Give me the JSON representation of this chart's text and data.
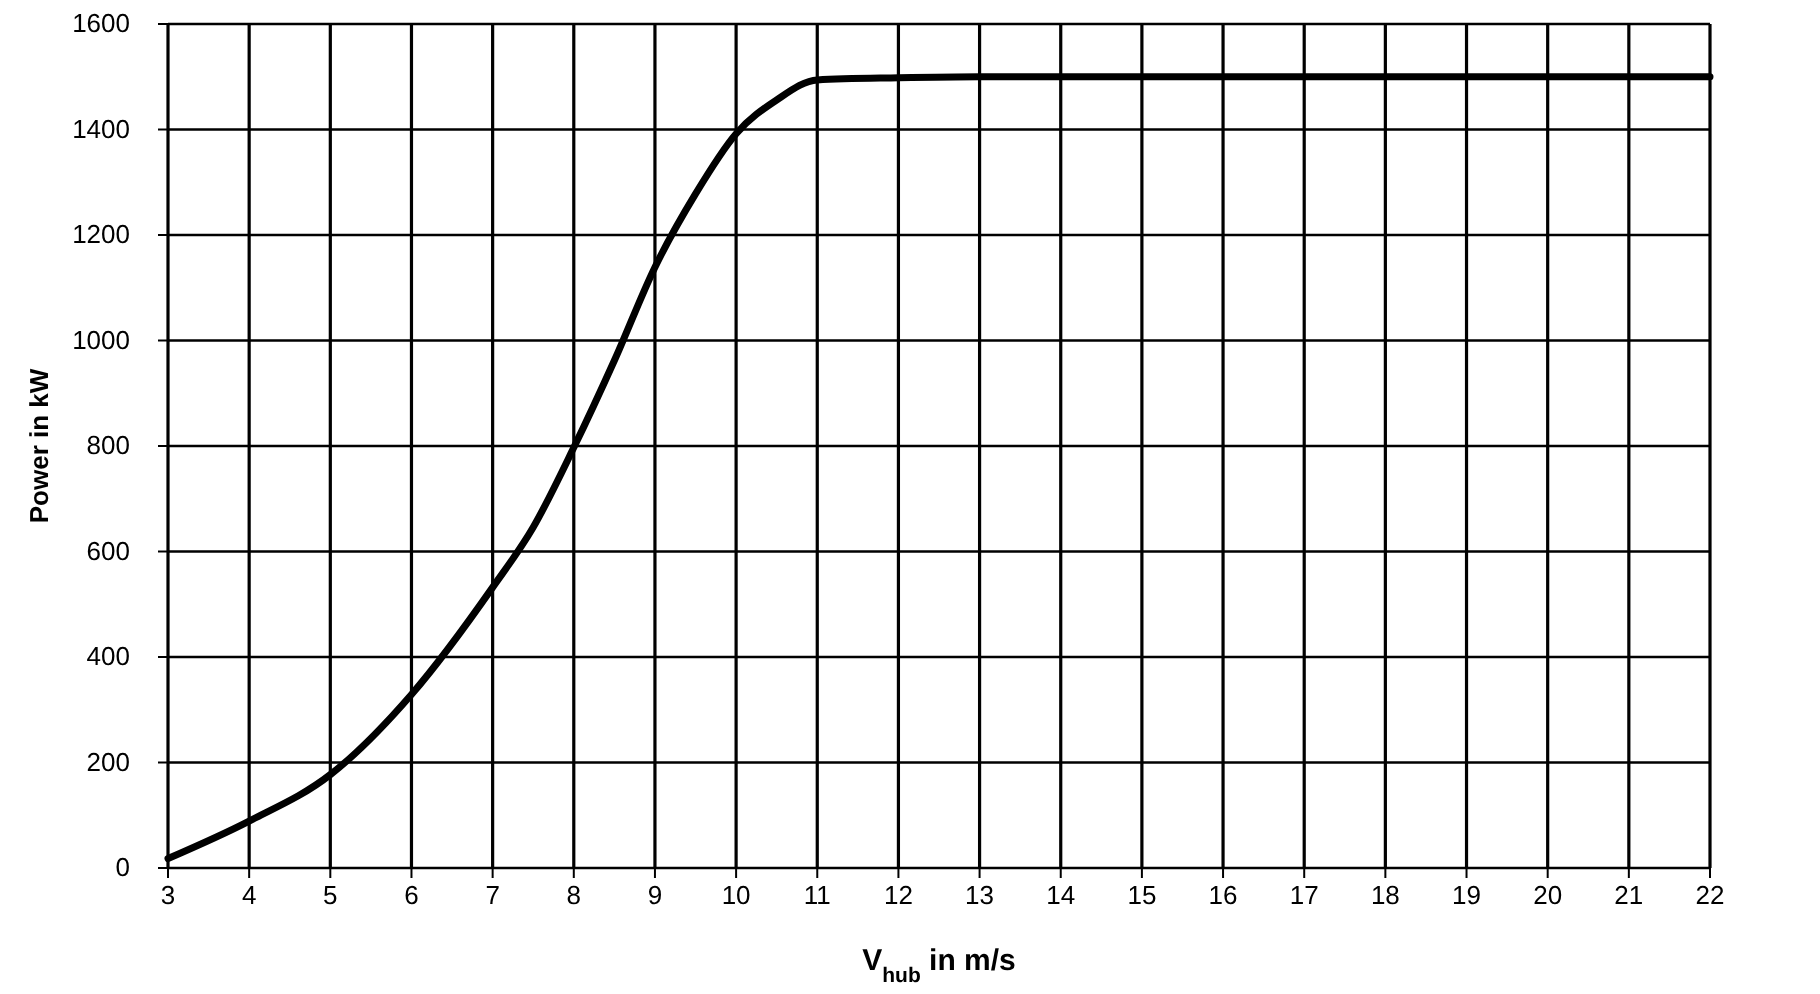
{
  "chart_data": {
    "type": "line",
    "xlabel": "V$_{hub}$ in m/s",
    "ylabel": "Power in kW",
    "x": [
      3,
      4,
      5,
      6,
      7,
      7.5,
      8,
      8.5,
      9,
      9.5,
      10,
      10.5,
      11,
      12,
      13,
      22
    ],
    "series": [
      {
        "color": "#000000",
        "values": [
          18,
          89,
          177,
          329,
          532,
          646,
          797,
          962,
          1139,
          1278,
          1392,
          1456,
          1494,
          1498,
          1500,
          1500
        ]
      }
    ],
    "xlim": [
      3,
      22
    ],
    "xticks": [
      3,
      4,
      5,
      6,
      7,
      8,
      9,
      10,
      11,
      12,
      13,
      14,
      15,
      16,
      17,
      18,
      19,
      20,
      21,
      22
    ],
    "ylim": [
      0,
      1600
    ],
    "yticks": [
      0,
      200,
      400,
      600,
      800,
      1000,
      1200,
      1400,
      1600
    ],
    "grid": true,
    "marker": "none",
    "line_style": "solid"
  }
}
